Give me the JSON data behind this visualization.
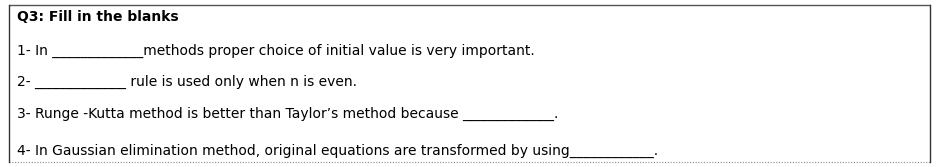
{
  "title": "Q3: Fill in the blanks",
  "lines": [
    "1- In _____________methods proper choice of initial value is very important.",
    "2- _____________ rule is used only when n is even.",
    "3- Runge -Kutta method is better than Taylor’s method because _____________.",
    "4- In Gaussian elimination method, original equations are transformed by using____________."
  ],
  "top_border_color": "#555555",
  "bottom_border_color": "#888888",
  "left_border_color": "#333333",
  "background_color": "#ffffff",
  "text_color": "#000000",
  "title_fontsize": 10,
  "body_fontsize": 10,
  "fig_width": 9.39,
  "fig_height": 1.67,
  "dpi": 100
}
